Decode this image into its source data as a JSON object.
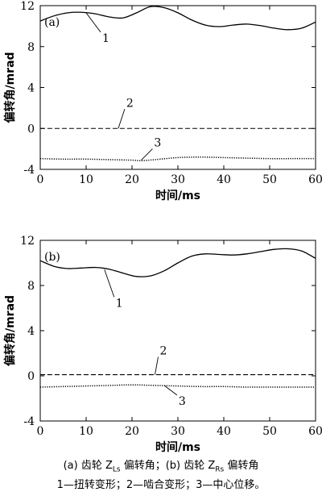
{
  "caption": {
    "line1": {
      "a_label": "(a)  齿轮 Z",
      "a_sub": "Ls",
      "a_tail": " 偏转角；",
      "b_label": "(b)  齿轮 Z",
      "b_sub": "Rs",
      "b_tail": " 偏转角"
    },
    "line2": "1—扭转变形；2—啮合变形；3—中心位移。"
  },
  "chart_data": [
    {
      "type": "line",
      "panel_label": "(a)",
      "xlabel": "时间/ms",
      "ylabel": "偏转角/mrad",
      "xlim": [
        0,
        60
      ],
      "ylim": [
        -4,
        12
      ],
      "xticks": [
        0,
        10,
        20,
        30,
        40,
        50,
        60
      ],
      "yticks": [
        -4,
        0,
        4,
        8,
        12
      ],
      "grid": false,
      "series": [
        {
          "name": "1",
          "style": "solid",
          "x": [
            0,
            3,
            6,
            9,
            12,
            15,
            18,
            21,
            24,
            27,
            30,
            33,
            36,
            39,
            42,
            45,
            48,
            51,
            54,
            57,
            60
          ],
          "values": [
            10.5,
            11.0,
            11.3,
            11.35,
            11.2,
            10.9,
            10.8,
            11.3,
            11.9,
            11.8,
            11.3,
            10.6,
            10.1,
            9.95,
            10.1,
            10.2,
            10.05,
            9.8,
            9.65,
            9.8,
            10.4
          ]
        },
        {
          "name": "2",
          "style": "dashed",
          "x": [
            0,
            60
          ],
          "values": [
            0.0,
            0.0
          ]
        },
        {
          "name": "3",
          "style": "dotted",
          "x": [
            0,
            5,
            10,
            15,
            20,
            22,
            25,
            30,
            35,
            40,
            45,
            50,
            55,
            60
          ],
          "values": [
            -2.95,
            -3.0,
            -3.0,
            -3.05,
            -3.1,
            -3.15,
            -3.05,
            -2.85,
            -2.8,
            -2.85,
            -2.9,
            -2.95,
            -2.95,
            -2.95
          ]
        }
      ],
      "annotations": [
        {
          "text": "1",
          "at_x": 10,
          "at_y": 11.3
        },
        {
          "text": "2",
          "at_x": 17,
          "at_y": 0.0
        },
        {
          "text": "3",
          "at_x": 22,
          "at_y": -3.1
        }
      ]
    },
    {
      "type": "line",
      "panel_label": "(b)",
      "xlabel": "时间/ms",
      "ylabel": "偏转角/mrad",
      "xlim": [
        0,
        60
      ],
      "ylim": [
        -4,
        12
      ],
      "xticks": [
        0,
        10,
        20,
        30,
        40,
        50,
        60
      ],
      "yticks": [
        -4,
        0,
        4,
        8,
        12
      ],
      "grid": false,
      "series": [
        {
          "name": "1",
          "style": "solid",
          "x": [
            0,
            3,
            6,
            9,
            12,
            15,
            18,
            21,
            24,
            27,
            30,
            33,
            36,
            39,
            42,
            45,
            48,
            51,
            54,
            57,
            60
          ],
          "values": [
            10.2,
            9.7,
            9.5,
            9.55,
            9.6,
            9.45,
            9.1,
            8.8,
            8.85,
            9.3,
            10.0,
            10.6,
            10.8,
            10.75,
            10.7,
            10.8,
            11.0,
            11.2,
            11.25,
            11.05,
            10.4
          ]
        },
        {
          "name": "2",
          "style": "dashed",
          "x": [
            0,
            60
          ],
          "values": [
            0.1,
            0.1
          ]
        },
        {
          "name": "3",
          "style": "dotted",
          "x": [
            0,
            5,
            10,
            15,
            20,
            25,
            30,
            35,
            40,
            45,
            50,
            55,
            60
          ],
          "values": [
            -1.0,
            -0.95,
            -0.9,
            -0.85,
            -0.8,
            -0.85,
            -0.9,
            -0.95,
            -0.95,
            -1.0,
            -1.0,
            -1.0,
            -1.0
          ]
        }
      ],
      "annotations": [
        {
          "text": "1",
          "at_x": 14,
          "at_y": 9.4
        },
        {
          "text": "2",
          "at_x": 25,
          "at_y": 0.1
        },
        {
          "text": "3",
          "at_x": 27,
          "at_y": -0.85
        }
      ]
    }
  ]
}
